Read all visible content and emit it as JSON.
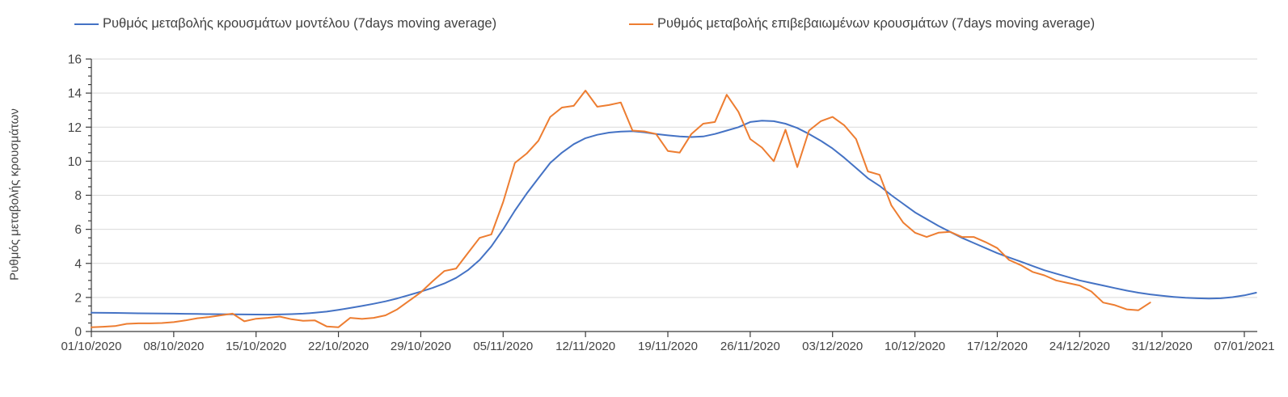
{
  "chart_data": {
    "type": "line",
    "title": "",
    "ylabel": "Ρυθμός μεταβολής κρουσμάτων",
    "xlabel": "",
    "ylim": [
      0,
      16
    ],
    "y_tick_step": 2,
    "y_minor_tick_step": 0.5,
    "y_tick_labels": [
      "0",
      "2",
      "4",
      "6",
      "8",
      "10",
      "12",
      "14",
      "16"
    ],
    "x_tick_labels": [
      "01/10/2020",
      "08/10/2020",
      "15/10/2020",
      "22/10/2020",
      "29/10/2020",
      "05/11/2020",
      "12/11/2020",
      "19/11/2020",
      "26/11/2020",
      "03/12/2020",
      "10/12/2020",
      "17/12/2020",
      "24/12/2020",
      "31/12/2020",
      "07/01/2021"
    ],
    "x_tick_interval_days": 7,
    "x_unit": "day index from 01/10/2020",
    "grid": "horizontal",
    "legend_position": "top",
    "series": [
      {
        "name": "Ρυθμός μεταβολής κρουσμάτων μοντέλου (7days moving average)",
        "color": "#4472C4",
        "start_day": 0,
        "values_daily": [
          1.1,
          1.095,
          1.09,
          1.08,
          1.07,
          1.065,
          1.055,
          1.05,
          1.04,
          1.03,
          1.02,
          1.015,
          1.01,
          1.0,
          0.995,
          0.99,
          1.0,
          1.02,
          1.05,
          1.1,
          1.17,
          1.27,
          1.38,
          1.5,
          1.63,
          1.77,
          1.94,
          2.14,
          2.34,
          2.56,
          2.82,
          3.15,
          3.6,
          4.2,
          5.0,
          6.0,
          7.1,
          8.1,
          9.0,
          9.9,
          10.5,
          11.0,
          11.35,
          11.55,
          11.68,
          11.74,
          11.76,
          11.7,
          11.6,
          11.52,
          11.45,
          11.42,
          11.45,
          11.6,
          11.8,
          12.0,
          12.3,
          12.38,
          12.35,
          12.2,
          11.95,
          11.6,
          11.2,
          10.75,
          10.2,
          9.6,
          9.0,
          8.55,
          8.0,
          7.5,
          7.0,
          6.6,
          6.2,
          5.85,
          5.5,
          5.2,
          4.9,
          4.6,
          4.35,
          4.1,
          3.85,
          3.6,
          3.4,
          3.2,
          3.0,
          2.85,
          2.7,
          2.55,
          2.4,
          2.28,
          2.18,
          2.1,
          2.03,
          1.98,
          1.95,
          1.93,
          1.95,
          2.02,
          2.12,
          2.28
        ]
      },
      {
        "name": "Ρυθμός μεταβολής επιβεβαιωμένων κρουσμάτων (7days moving average)",
        "color": "#ED7D31",
        "start_day": 0,
        "values_daily": [
          0.25,
          0.28,
          0.32,
          0.45,
          0.48,
          0.48,
          0.5,
          0.55,
          0.65,
          0.78,
          0.85,
          0.95,
          1.05,
          0.6,
          0.75,
          0.8,
          0.88,
          0.72,
          0.63,
          0.65,
          0.3,
          0.25,
          0.8,
          0.74,
          0.8,
          0.95,
          1.3,
          1.8,
          2.3,
          2.95,
          3.55,
          3.7,
          4.6,
          5.5,
          5.7,
          7.6,
          9.9,
          10.45,
          11.2,
          12.6,
          13.15,
          13.25,
          14.15,
          13.2,
          13.3,
          13.45,
          11.8,
          11.75,
          11.6,
          10.6,
          10.5,
          11.6,
          12.2,
          12.3,
          13.9,
          12.9,
          11.3,
          10.8,
          10.0,
          11.85,
          9.65,
          11.8,
          12.35,
          12.6,
          12.1,
          11.3,
          9.4,
          9.2,
          7.4,
          6.4,
          5.8,
          5.55,
          5.8,
          5.85,
          5.55,
          5.55,
          5.25,
          4.9,
          4.2,
          3.9,
          3.5,
          3.3,
          3.0,
          2.85,
          2.7,
          2.35,
          1.7,
          1.55,
          1.3,
          1.25,
          1.7
        ]
      }
    ],
    "colors": {
      "grid": "#D9D9D9",
      "axis": "#3b3b3b",
      "tick_label": "#444444",
      "legend_text": "#404040",
      "background": "#FFFFFF"
    }
  }
}
